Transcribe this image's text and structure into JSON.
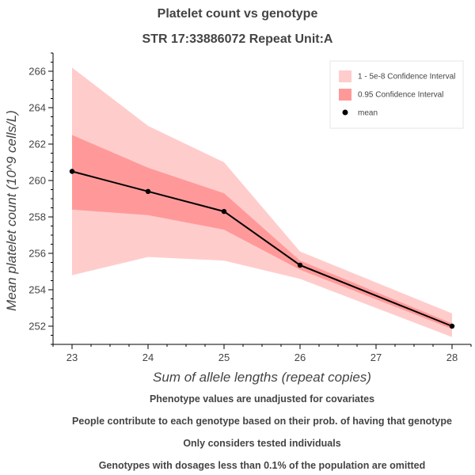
{
  "chart_data": {
    "type": "line",
    "title": "Platelet count vs genotype",
    "subtitle": "STR 17:33886072 Repeat Unit:A",
    "xlabel": "Sum of allele lengths (repeat copies)",
    "ylabel": "Mean platelet count (10^9 cells/L)",
    "xlim": [
      22.75,
      28.25
    ],
    "ylim": [
      251.0,
      267.0
    ],
    "x": [
      23,
      24,
      25,
      26,
      28
    ],
    "x_ticks": [
      23,
      24,
      25,
      26,
      27,
      28
    ],
    "y_ticks": [
      252,
      254,
      256,
      258,
      260,
      262,
      264,
      266
    ],
    "series": [
      {
        "name": "1 - 5e-8 Confidence Interval",
        "kind": "band",
        "color": "#ffcccc",
        "lower": [
          254.8,
          255.8,
          255.6,
          254.6,
          251.4
        ],
        "upper": [
          266.2,
          263.0,
          261.0,
          256.1,
          252.7
        ]
      },
      {
        "name": "0.95 Confidence Interval",
        "kind": "band",
        "color": "#ff9999",
        "lower": [
          258.4,
          258.1,
          257.3,
          255.1,
          251.85
        ],
        "upper": [
          262.5,
          260.7,
          259.3,
          255.6,
          252.15
        ]
      },
      {
        "name": "mean",
        "kind": "line",
        "color": "#000000",
        "values": [
          260.5,
          259.4,
          258.3,
          255.35,
          252.0
        ]
      }
    ],
    "legend_position": "top-right",
    "grid": false
  },
  "notes": [
    "Phenotype values are unadjusted for covariates",
    "People contribute to each genotype based on their prob. of having that genotype",
    "Only considers tested individuals",
    "Genotypes with dosages less than 0.1% of the population are omitted"
  ]
}
